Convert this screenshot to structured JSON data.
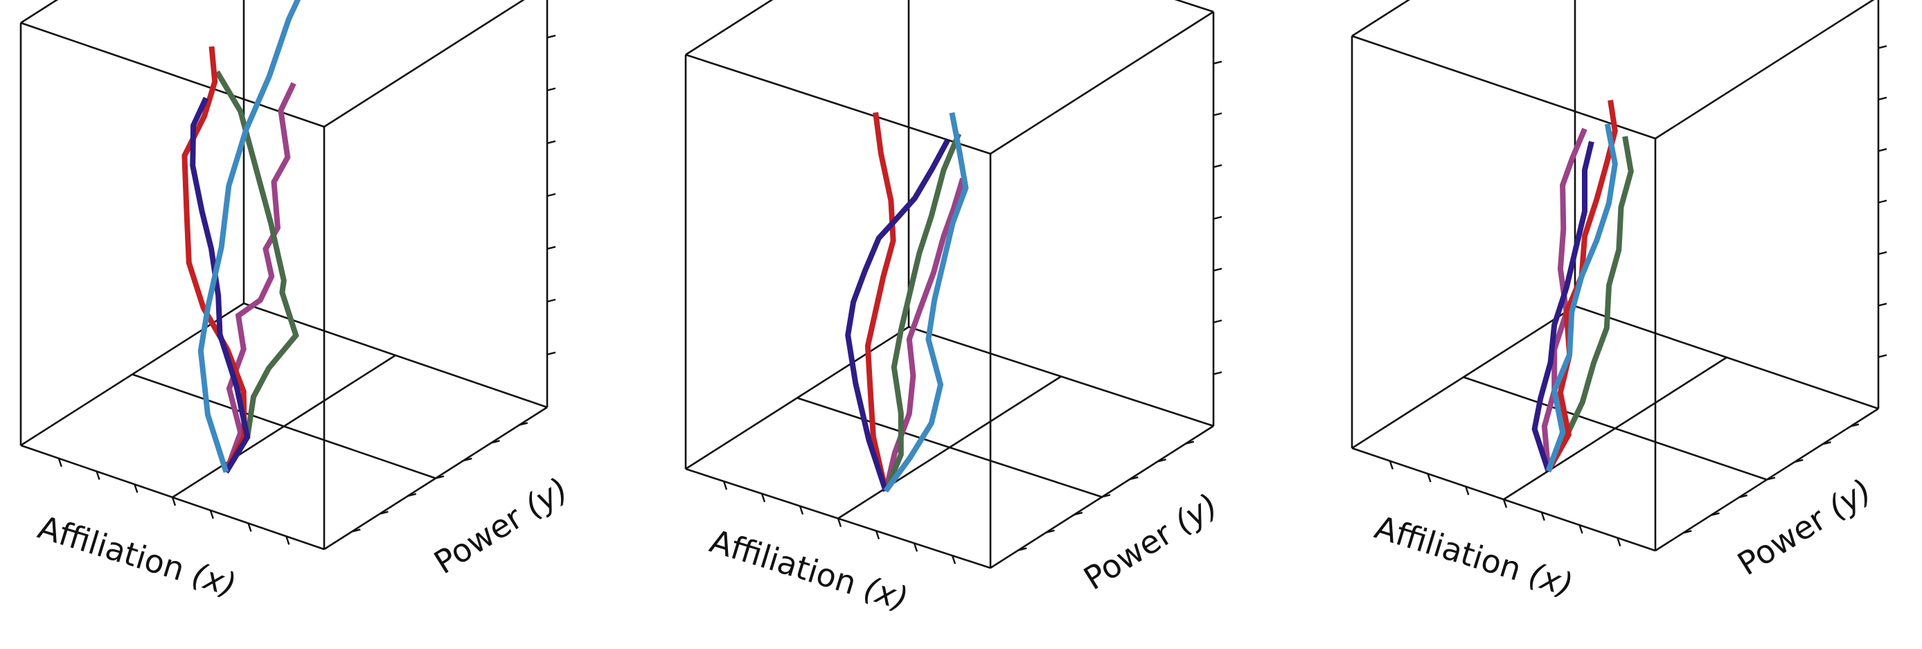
{
  "chart_data": [
    {
      "type": "line3d",
      "xlabel": "Affiliation",
      "xlabel_var": "(x)",
      "ylabel": "Power",
      "ylabel_var": "(y)",
      "series": [
        {
          "color": "#9b4387",
          "points": [
            [
              0.47,
              0.2,
              0.0
            ],
            [
              0.43,
              0.21,
              0.1
            ],
            [
              0.46,
              0.2,
              0.2
            ],
            [
              0.42,
              0.21,
              0.3
            ],
            [
              0.43,
              0.2,
              0.38
            ],
            [
              0.35,
              0.19,
              0.44
            ],
            [
              0.32,
              0.2,
              0.5
            ],
            [
              0.34,
              0.2,
              0.56
            ],
            [
              0.3,
              0.2,
              0.62
            ],
            [
              0.32,
              0.21,
              0.72
            ],
            [
              0.26,
              0.19,
              0.8
            ],
            [
              0.29,
              0.2,
              0.9
            ],
            [
              0.24,
              0.19,
              0.98
            ]
          ]
        },
        {
          "color": "#4a6b4a",
          "points": [
            [
              0.47,
              0.2,
              0.0
            ],
            [
              0.4,
              0.2,
              0.1
            ],
            [
              0.38,
              0.2,
              0.2
            ],
            [
              0.33,
              0.2,
              0.28
            ],
            [
              0.24,
              0.2,
              0.38
            ],
            [
              0.3,
              0.22,
              0.46
            ],
            [
              0.28,
              0.2,
              0.5
            ],
            [
              0.33,
              0.21,
              0.62
            ],
            [
              0.38,
              0.21,
              0.74
            ],
            [
              0.43,
              0.21,
              0.86
            ],
            [
              0.5,
              0.2,
              0.94
            ]
          ]
        },
        {
          "color": "#c42124",
          "points": [
            [
              0.47,
              0.2,
              0.0
            ],
            [
              0.41,
              0.2,
              0.1
            ],
            [
              0.42,
              0.21,
              0.2
            ],
            [
              0.48,
              0.22,
              0.28
            ],
            [
              0.56,
              0.22,
              0.36
            ],
            [
              0.6,
              0.21,
              0.46
            ],
            [
              0.6,
              0.2,
              0.58
            ],
            [
              0.6,
              0.19,
              0.72
            ],
            [
              0.52,
              0.17,
              0.84
            ],
            [
              0.5,
              0.19,
              0.92
            ],
            [
              0.54,
              0.23,
              0.98
            ]
          ]
        },
        {
          "color": "#2e1d86",
          "points": [
            [
              0.47,
              0.2,
              0.0
            ],
            [
              0.4,
              0.2,
              0.1
            ],
            [
              0.45,
              0.22,
              0.2
            ],
            [
              0.52,
              0.24,
              0.3
            ],
            [
              0.54,
              0.26,
              0.38
            ],
            [
              0.6,
              0.31,
              0.46
            ],
            [
              0.66,
              0.35,
              0.52
            ],
            [
              0.72,
              0.39,
              0.6
            ],
            [
              0.74,
              0.42,
              0.68
            ],
            [
              0.72,
              0.45,
              0.74
            ]
          ]
        },
        {
          "color": "#3d8ac1",
          "points": [
            [
              0.47,
              0.2,
              0.0
            ],
            [
              0.56,
              0.24,
              0.1
            ],
            [
              0.62,
              0.29,
              0.22
            ],
            [
              0.64,
              0.35,
              0.3
            ],
            [
              0.64,
              0.41,
              0.42
            ],
            [
              0.66,
              0.47,
              0.54
            ],
            [
              0.64,
              0.52,
              0.66
            ],
            [
              0.6,
              0.57,
              0.78
            ],
            [
              0.58,
              0.63,
              0.9
            ],
            [
              0.56,
              0.71,
              1.0
            ]
          ]
        }
      ]
    },
    {
      "type": "line3d",
      "xlabel": "Affiliation",
      "xlabel_var": "(x)",
      "ylabel": "Power",
      "ylabel_var": "(y)",
      "series": [
        {
          "color": "#9b4387",
          "points": [
            [
              0.49,
              0.2,
              0.0
            ],
            [
              0.46,
              0.2,
              0.1
            ],
            [
              0.42,
              0.21,
              0.2
            ],
            [
              0.4,
              0.2,
              0.3
            ],
            [
              0.42,
              0.21,
              0.38
            ],
            [
              0.38,
              0.2,
              0.46
            ],
            [
              0.34,
              0.21,
              0.56
            ],
            [
              0.3,
              0.2,
              0.66
            ],
            [
              0.26,
              0.19,
              0.74
            ],
            [
              0.23,
              0.19,
              0.82
            ]
          ]
        },
        {
          "color": "#4a6b4a",
          "points": [
            [
              0.49,
              0.2,
              0.0
            ],
            [
              0.44,
              0.2,
              0.1
            ],
            [
              0.44,
              0.2,
              0.2
            ],
            [
              0.47,
              0.21,
              0.3
            ],
            [
              0.44,
              0.2,
              0.4
            ],
            [
              0.41,
              0.2,
              0.5
            ],
            [
              0.38,
              0.2,
              0.6
            ],
            [
              0.34,
              0.2,
              0.7
            ],
            [
              0.3,
              0.2,
              0.82
            ],
            [
              0.25,
              0.2,
              0.92
            ]
          ]
        },
        {
          "color": "#c42124",
          "points": [
            [
              0.49,
              0.2,
              0.0
            ],
            [
              0.56,
              0.24,
              0.1
            ],
            [
              0.6,
              0.28,
              0.2
            ],
            [
              0.6,
              0.27,
              0.3
            ],
            [
              0.56,
              0.25,
              0.4
            ],
            [
              0.52,
              0.23,
              0.5
            ],
            [
              0.48,
              0.22,
              0.6
            ],
            [
              0.48,
              0.21,
              0.7
            ],
            [
              0.52,
              0.22,
              0.8
            ],
            [
              0.56,
              0.25,
              0.88
            ]
          ]
        },
        {
          "color": "#2e1d86",
          "points": [
            [
              0.49,
              0.2,
              0.0
            ],
            [
              0.56,
              0.22,
              0.1
            ],
            [
              0.64,
              0.27,
              0.2
            ],
            [
              0.68,
              0.29,
              0.3
            ],
            [
              0.64,
              0.26,
              0.4
            ],
            [
              0.58,
              0.23,
              0.5
            ],
            [
              0.52,
              0.21,
              0.6
            ],
            [
              0.46,
              0.2,
              0.66
            ],
            [
              0.38,
              0.18,
              0.74
            ],
            [
              0.33,
              0.19,
              0.82
            ],
            [
              0.28,
              0.19,
              0.9
            ]
          ]
        },
        {
          "color": "#3d8ac1",
          "points": [
            [
              0.49,
              0.2,
              0.0
            ],
            [
              0.41,
              0.2,
              0.1
            ],
            [
              0.34,
              0.2,
              0.2
            ],
            [
              0.31,
              0.2,
              0.3
            ],
            [
              0.35,
              0.2,
              0.4
            ],
            [
              0.33,
              0.2,
              0.5
            ],
            [
              0.3,
              0.2,
              0.6
            ],
            [
              0.27,
              0.2,
              0.7
            ],
            [
              0.22,
              0.19,
              0.8
            ],
            [
              0.24,
              0.19,
              0.88
            ],
            [
              0.28,
              0.21,
              0.96
            ]
          ]
        }
      ]
    },
    {
      "type": "line3d",
      "xlabel": "Affiliation",
      "xlabel_var": "(x)",
      "ylabel": "Power",
      "ylabel_var": "(y)",
      "series": [
        {
          "color": "#9b4387",
          "points": [
            [
              0.5,
              0.2,
              0.0
            ],
            [
              0.52,
              0.21,
              0.1
            ],
            [
              0.48,
              0.2,
              0.2
            ],
            [
              0.48,
              0.2,
              0.3
            ],
            [
              0.44,
              0.2,
              0.4
            ],
            [
              0.46,
              0.2,
              0.5
            ],
            [
              0.45,
              0.2,
              0.6
            ],
            [
              0.46,
              0.21,
              0.7
            ],
            [
              0.42,
              0.2,
              0.78
            ],
            [
              0.38,
              0.2,
              0.86
            ]
          ]
        },
        {
          "color": "#4a6b4a",
          "points": [
            [
              0.5,
              0.2,
              0.0
            ],
            [
              0.44,
              0.2,
              0.1
            ],
            [
              0.38,
              0.19,
              0.2
            ],
            [
              0.35,
              0.2,
              0.3
            ],
            [
              0.3,
              0.19,
              0.4
            ],
            [
              0.3,
              0.2,
              0.5
            ],
            [
              0.26,
              0.19,
              0.6
            ],
            [
              0.26,
              0.2,
              0.7
            ],
            [
              0.22,
              0.19,
              0.8
            ],
            [
              0.24,
              0.19,
              0.88
            ]
          ]
        },
        {
          "color": "#c42124",
          "points": [
            [
              0.5,
              0.2,
              0.0
            ],
            [
              0.44,
              0.21,
              0.1
            ],
            [
              0.46,
              0.2,
              0.2
            ],
            [
              0.43,
              0.2,
              0.3
            ],
            [
              0.44,
              0.2,
              0.4
            ],
            [
              0.39,
              0.2,
              0.5
            ],
            [
              0.38,
              0.2,
              0.6
            ],
            [
              0.34,
              0.2,
              0.7
            ],
            [
              0.3,
              0.19,
              0.8
            ],
            [
              0.28,
              0.2,
              0.88
            ],
            [
              0.31,
              0.22,
              0.94
            ]
          ]
        },
        {
          "color": "#2e1d86",
          "points": [
            [
              0.5,
              0.2,
              0.0
            ],
            [
              0.56,
              0.22,
              0.08
            ],
            [
              0.54,
              0.22,
              0.16
            ],
            [
              0.5,
              0.21,
              0.26
            ],
            [
              0.48,
              0.2,
              0.36
            ],
            [
              0.44,
              0.2,
              0.46
            ],
            [
              0.41,
              0.2,
              0.56
            ],
            [
              0.38,
              0.2,
              0.66
            ],
            [
              0.38,
              0.2,
              0.76
            ],
            [
              0.35,
              0.19,
              0.84
            ]
          ]
        },
        {
          "color": "#3d8ac1",
          "points": [
            [
              0.5,
              0.2,
              0.0
            ],
            [
              0.46,
              0.21,
              0.1
            ],
            [
              0.48,
              0.2,
              0.2
            ],
            [
              0.43,
              0.2,
              0.3
            ],
            [
              0.43,
              0.21,
              0.4
            ],
            [
              0.39,
              0.2,
              0.5
            ],
            [
              0.34,
              0.2,
              0.6
            ],
            [
              0.3,
              0.2,
              0.7
            ],
            [
              0.28,
              0.2,
              0.8
            ],
            [
              0.32,
              0.22,
              0.88
            ]
          ]
        }
      ]
    }
  ]
}
